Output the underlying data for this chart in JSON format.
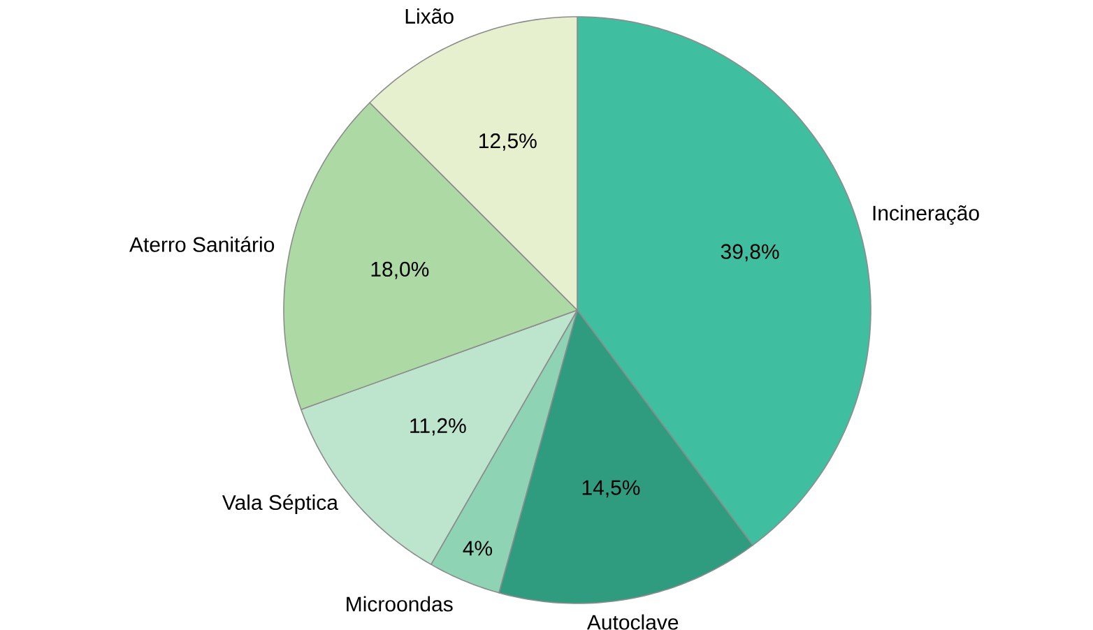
{
  "chart_data": {
    "type": "pie",
    "categories": [
      "Incineração",
      "Autoclave",
      "Microondas",
      "Vala Séptica",
      "Aterro Sanitário",
      "Lixão"
    ],
    "values": [
      39.8,
      14.5,
      4,
      11.2,
      18.0,
      12.5
    ],
    "value_labels": [
      "39,8%",
      "14,5%",
      "4%",
      "11,2%",
      "18,0%",
      "12,5%"
    ],
    "colors": [
      "#40bfa0",
      "#2f9c80",
      "#8ed3b4",
      "#bde4cc",
      "#acd9a4",
      "#e6f0cf"
    ]
  }
}
